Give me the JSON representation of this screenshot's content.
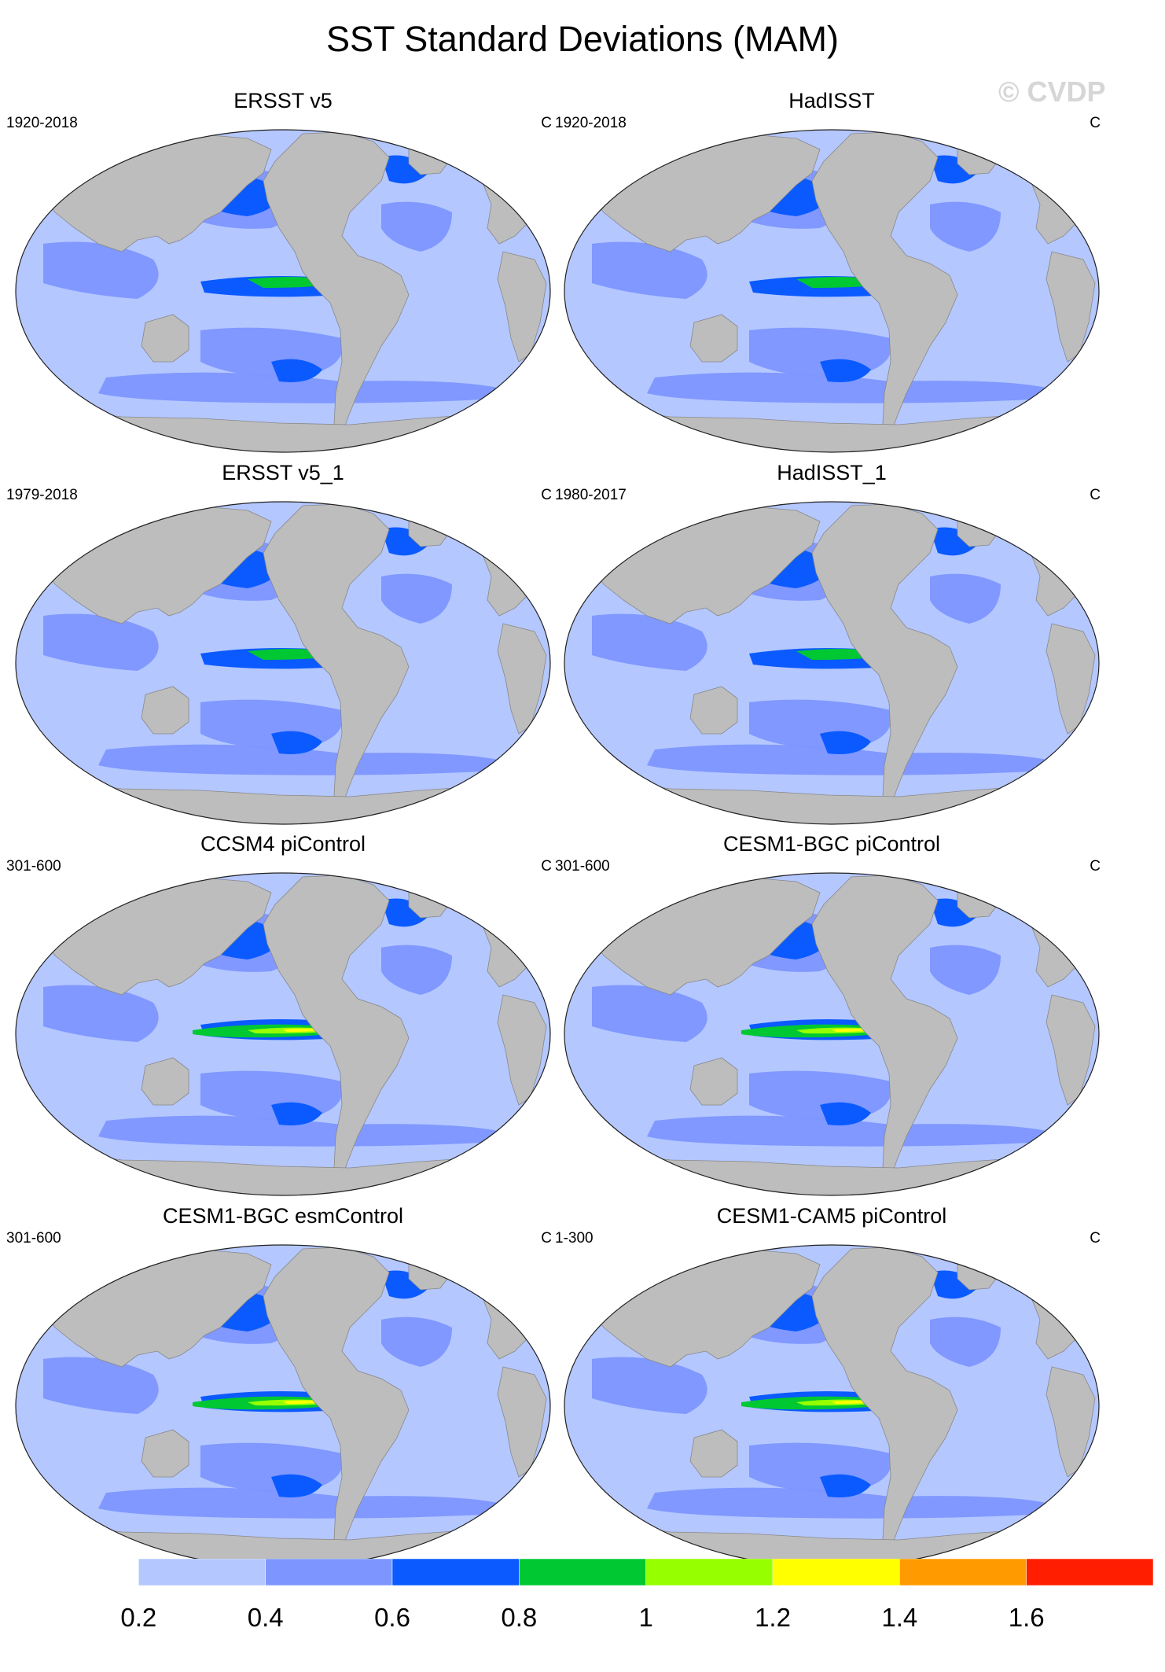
{
  "title": "SST Standard Deviations (MAM)",
  "watermark": "© CVDP",
  "colorbar": {
    "levels": [
      "0.2",
      "0.4",
      "0.6",
      "0.8",
      "1",
      "1.2",
      "1.4",
      "1.6"
    ],
    "colors": [
      "#ffffff",
      "#b4c7ff",
      "#7d96ff",
      "#0a5aff",
      "#00c832",
      "#96ff00",
      "#ffff00",
      "#ff9b00",
      "#ff1e00"
    ]
  },
  "colors": {
    "land": "#bdbdbd",
    "ocean_base": "#b4c7ff"
  },
  "panels": [
    {
      "title": "ERSST v5",
      "period": "1920-2018",
      "units": "C"
    },
    {
      "title": "HadISST",
      "period": "1920-2018",
      "units": "C"
    },
    {
      "title": "ERSST v5_1",
      "period": "1979-2018",
      "units": "C"
    },
    {
      "title": "HadISST_1",
      "period": "1980-2017",
      "units": "C"
    },
    {
      "title": "CCSM4 piControl",
      "period": "301-600",
      "units": "C"
    },
    {
      "title": "CESM1-BGC piControl",
      "period": "301-600",
      "units": "C"
    },
    {
      "title": "CESM1-BGC esmControl",
      "period": "301-600",
      "units": "C"
    },
    {
      "title": "CESM1-CAM5 piControl",
      "period": "1-300",
      "units": "C"
    }
  ]
}
